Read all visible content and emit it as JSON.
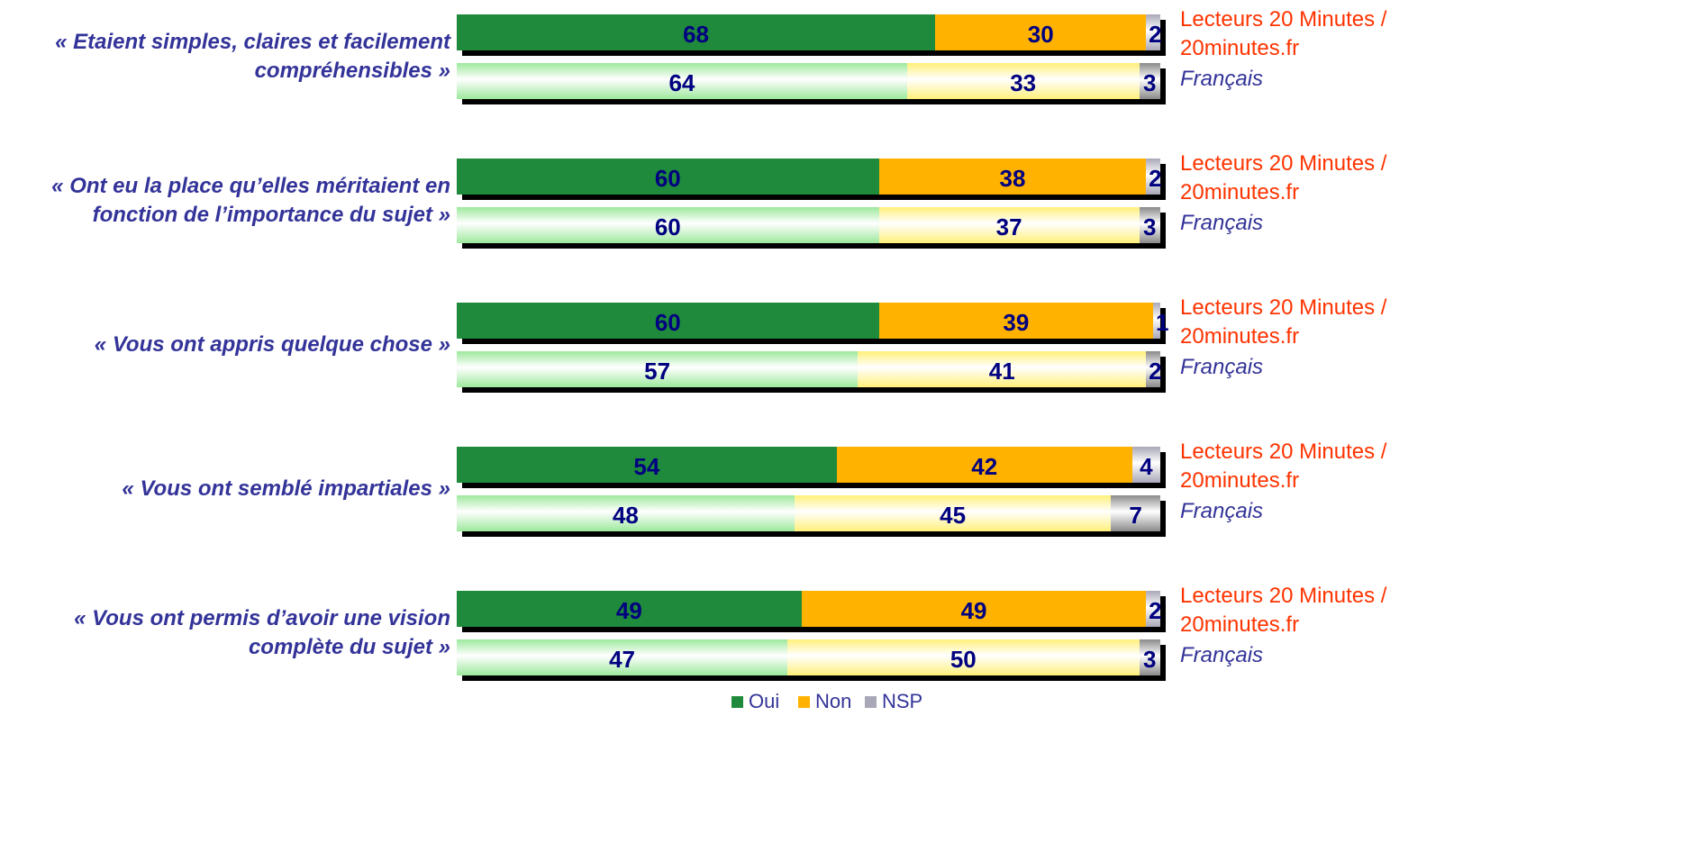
{
  "chart_data": {
    "type": "bar",
    "orientation": "horizontal",
    "stacked": true,
    "categories": [
      "« Etaient simples, claires et facilement compréhensibles »",
      "« Ont eu la place qu’elles méritaient en fonction de l’importance du sujet »",
      "« Vous ont appris quelque chose »",
      "« Vous ont semblé impartiales »",
      "« Vous ont permis d’avoir une vision complète du sujet »"
    ],
    "populations": [
      "Lecteurs 20 Minutes / 20minutes.fr",
      "Français"
    ],
    "population_colors": [
      "#ff3300",
      "#333399"
    ],
    "series": [
      {
        "name": "Oui",
        "colors": [
          "#1f8a3b",
          "#9de89d"
        ],
        "values": [
          [
            68,
            64
          ],
          [
            60,
            60
          ],
          [
            60,
            57
          ],
          [
            54,
            48
          ],
          [
            49,
            47
          ]
        ]
      },
      {
        "name": "Non",
        "colors": [
          "#ffb300",
          "#fff07a"
        ],
        "values": [
          [
            30,
            33
          ],
          [
            38,
            37
          ],
          [
            39,
            41
          ],
          [
            42,
            45
          ],
          [
            49,
            50
          ]
        ]
      },
      {
        "name": "NSP",
        "colors": [
          "#a8a8b8",
          "#8a8a8a"
        ],
        "values": [
          [
            2,
            3
          ],
          [
            2,
            3
          ],
          [
            1,
            2
          ],
          [
            4,
            7
          ],
          [
            2,
            3
          ]
        ]
      }
    ],
    "xlim": [
      0,
      100
    ],
    "legend": "bottom"
  }
}
